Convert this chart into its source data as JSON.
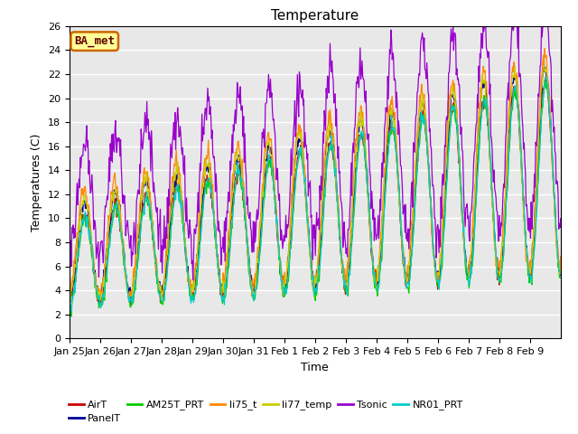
{
  "title": "Temperature",
  "xlabel": "Time",
  "ylabel": "Temperatures (C)",
  "ylim": [
    0,
    26
  ],
  "tick_labels": [
    "Jan 25",
    "Jan 26",
    "Jan 27",
    "Jan 28",
    "Jan 29",
    "Jan 30",
    "Jan 31",
    "Feb 1",
    "Feb 2",
    "Feb 3",
    "Feb 4",
    "Feb 5",
    "Feb 6",
    "Feb 7",
    "Feb 8",
    "Feb 9"
  ],
  "legend_entries": [
    "AirT",
    "PanelT",
    "AM25T_PRT",
    "li75_t",
    "li77_temp",
    "Tsonic",
    "NR01_PRT"
  ],
  "legend_colors": [
    "#cc0000",
    "#000099",
    "#00cc00",
    "#ff8800",
    "#cccc00",
    "#9900cc",
    "#00cccc"
  ],
  "bg_color": "#e8e8e8",
  "annotation_text": "BA_met",
  "annotation_bg": "#ffff99",
  "annotation_border": "#cc6600",
  "annotation_text_color": "#660000"
}
